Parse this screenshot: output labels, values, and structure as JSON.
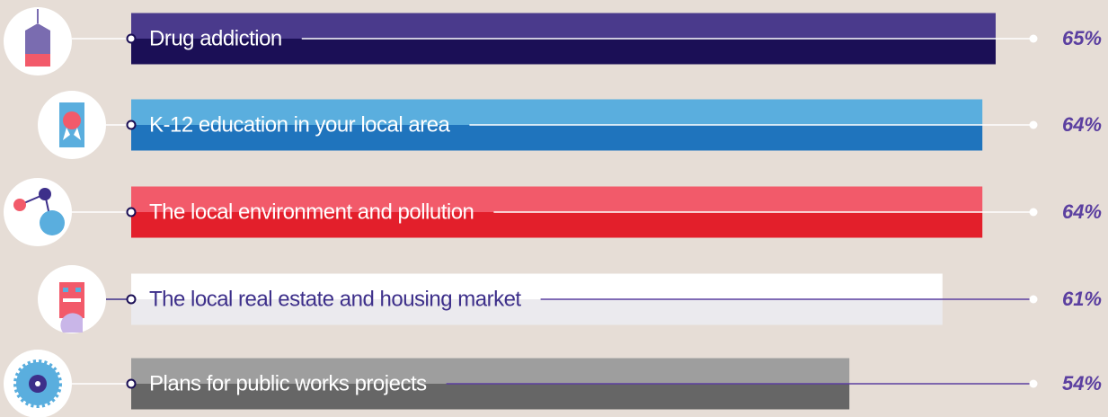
{
  "chart_data": {
    "type": "bar",
    "orientation": "horizontal",
    "categories": [
      "Drug addiction",
      "K-12 education in your local area",
      "The local environment and pollution",
      "The local real estate and housing market",
      "Plans for public works projects"
    ],
    "values": [
      65,
      64,
      64,
      61,
      54
    ],
    "value_labels": [
      "65%",
      "64%",
      "64%",
      "61%",
      "54%"
    ],
    "colors": [
      [
        "#4a3a8c",
        "#1b0f56"
      ],
      [
        "#5aaede",
        "#1f74bd"
      ],
      [
        "#f25a6a",
        "#e31f2b"
      ],
      [
        "#ffffff",
        "#ebeaee"
      ],
      [
        "#9e9e9e",
        "#666666"
      ]
    ],
    "label_colors": [
      "#ffffff",
      "#ffffff",
      "#ffffff",
      "#3d2f8a",
      "#ffffff"
    ]
  }
}
